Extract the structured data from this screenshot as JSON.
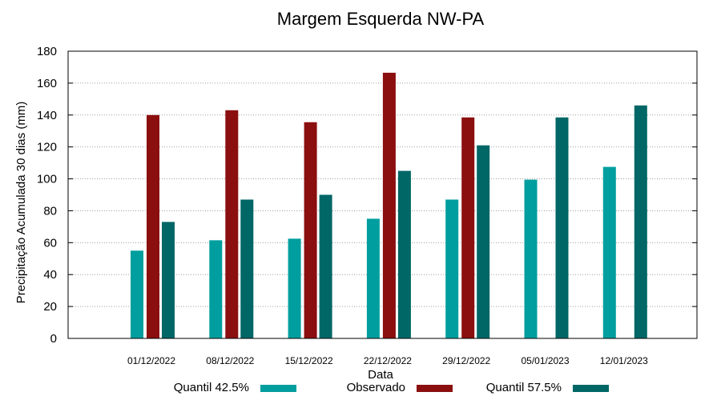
{
  "chart_data": {
    "type": "bar",
    "title": "Margem Esquerda NW-PA",
    "xlabel": "Data",
    "ylabel": "Precipitação Acumulada 30 dias (mm)",
    "ylim": [
      0,
      180
    ],
    "yticks": [
      0,
      20,
      40,
      60,
      80,
      100,
      120,
      140,
      160,
      180
    ],
    "grid": true,
    "legend_position": "bottom",
    "categories": [
      "01/12/2022",
      "08/12/2022",
      "15/12/2022",
      "22/12/2022",
      "29/12/2022",
      "05/01/2023",
      "12/01/2023"
    ],
    "series": [
      {
        "name": "Quantil 42.5%",
        "color": "#009e9e",
        "values": [
          55,
          61.5,
          62.5,
          75,
          87,
          99.5,
          107.5
        ]
      },
      {
        "name": "Observado",
        "color": "#8b0f0f",
        "values": [
          140,
          143,
          135.5,
          166.5,
          138.5,
          null,
          null
        ]
      },
      {
        "name": "Quantil 57.5%",
        "color": "#006666",
        "values": [
          73,
          87,
          90,
          105,
          121,
          138.5,
          146
        ]
      }
    ]
  }
}
